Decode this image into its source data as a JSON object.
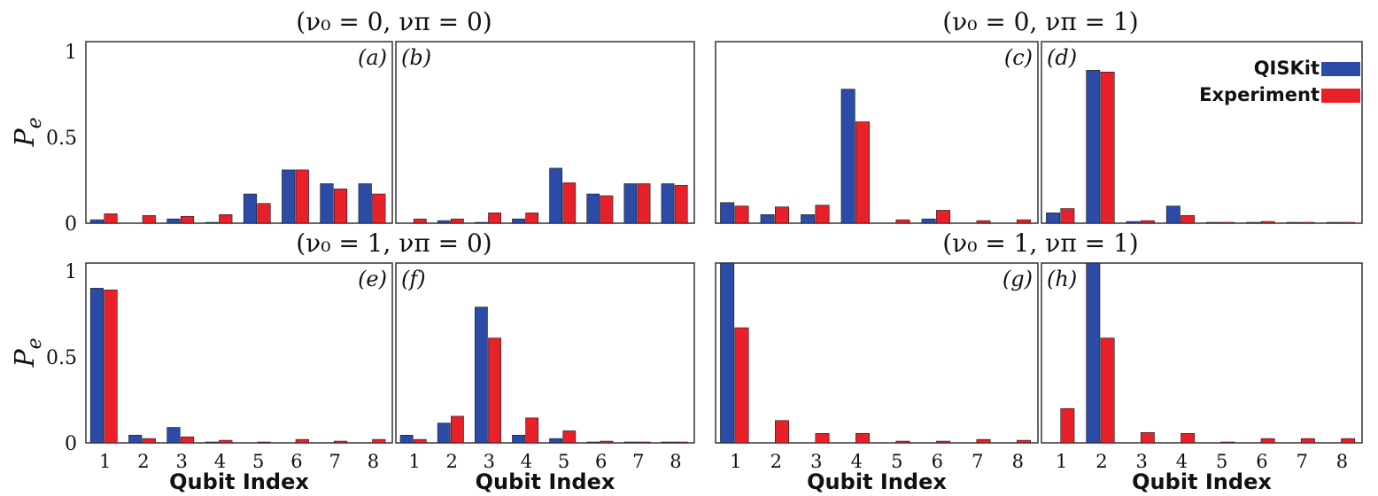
{
  "colors": {
    "qiskit": "#2b4ba6",
    "experiment": "#e8202a",
    "axis": "#333333"
  },
  "group_titles": [
    "(ν₀ = 0,   νπ = 0)",
    "(ν₀ = 0,   νπ = 1)",
    "(ν₀ = 1,   νπ = 0)",
    "(ν₀ = 1,   νπ = 1)"
  ],
  "legend": [
    {
      "label": "QISKit",
      "series": "qiskit"
    },
    {
      "label": "Experiment",
      "series": "experiment"
    }
  ],
  "ylabel": "Pe",
  "xlabel": "Qubit Index",
  "ytick_labels": [
    "0",
    "0.5",
    "1"
  ],
  "xtick_labels": [
    "1",
    "2",
    "3",
    "4",
    "5",
    "6",
    "7",
    "8"
  ],
  "chart_data": [
    {
      "panel": "(a)",
      "type": "bar",
      "categories": [
        "1",
        "2",
        "3",
        "4",
        "5",
        "6",
        "7",
        "8"
      ],
      "ylim": [
        0,
        1
      ],
      "series": [
        {
          "name": "QISKit",
          "values": [
            0.02,
            0.0,
            0.025,
            0.005,
            0.17,
            0.31,
            0.23,
            0.23
          ]
        },
        {
          "name": "Experiment",
          "values": [
            0.055,
            0.045,
            0.04,
            0.05,
            0.115,
            0.31,
            0.2,
            0.17
          ]
        }
      ]
    },
    {
      "panel": "(b)",
      "type": "bar",
      "categories": [
        "1",
        "2",
        "3",
        "4",
        "5",
        "6",
        "7",
        "8"
      ],
      "ylim": [
        0,
        1
      ],
      "series": [
        {
          "name": "QISKit",
          "values": [
            0.0,
            0.015,
            0.005,
            0.025,
            0.32,
            0.17,
            0.23,
            0.23
          ]
        },
        {
          "name": "Experiment",
          "values": [
            0.025,
            0.025,
            0.06,
            0.06,
            0.235,
            0.16,
            0.23,
            0.22
          ]
        }
      ]
    },
    {
      "panel": "(c)",
      "type": "bar",
      "categories": [
        "1",
        "2",
        "3",
        "4",
        "5",
        "6",
        "7",
        "8"
      ],
      "ylim": [
        0,
        1
      ],
      "series": [
        {
          "name": "QISKit",
          "values": [
            0.12,
            0.05,
            0.05,
            0.78,
            0.0,
            0.025,
            0.0,
            0.0
          ]
        },
        {
          "name": "Experiment",
          "values": [
            0.1,
            0.095,
            0.105,
            0.59,
            0.02,
            0.075,
            0.015,
            0.02
          ]
        }
      ]
    },
    {
      "panel": "(d)",
      "type": "bar",
      "categories": [
        "1",
        "2",
        "3",
        "4",
        "5",
        "6",
        "7",
        "8"
      ],
      "ylim": [
        0,
        1
      ],
      "series": [
        {
          "name": "QISKit",
          "values": [
            0.06,
            0.89,
            0.01,
            0.1,
            0.005,
            0.005,
            0.005,
            0.005
          ]
        },
        {
          "name": "Experiment",
          "values": [
            0.085,
            0.88,
            0.015,
            0.045,
            0.005,
            0.01,
            0.005,
            0.005
          ]
        }
      ]
    },
    {
      "panel": "(e)",
      "type": "bar",
      "categories": [
        "1",
        "2",
        "3",
        "4",
        "5",
        "6",
        "7",
        "8"
      ],
      "ylim": [
        0,
        1.05
      ],
      "series": [
        {
          "name": "QISKit",
          "values": [
            0.9,
            0.045,
            0.09,
            0.005,
            0.0,
            0.0,
            0.0,
            0.0
          ]
        },
        {
          "name": "Experiment",
          "values": [
            0.89,
            0.025,
            0.035,
            0.015,
            0.005,
            0.02,
            0.01,
            0.02
          ]
        }
      ]
    },
    {
      "panel": "(f)",
      "type": "bar",
      "categories": [
        "1",
        "2",
        "3",
        "4",
        "5",
        "6",
        "7",
        "8"
      ],
      "ylim": [
        0,
        1.05
      ],
      "series": [
        {
          "name": "QISKit",
          "values": [
            0.045,
            0.115,
            0.79,
            0.045,
            0.025,
            0.005,
            0.005,
            0.005
          ]
        },
        {
          "name": "Experiment",
          "values": [
            0.02,
            0.155,
            0.61,
            0.145,
            0.07,
            0.01,
            0.005,
            0.005
          ]
        }
      ]
    },
    {
      "panel": "(g)",
      "type": "bar",
      "categories": [
        "1",
        "2",
        "3",
        "4",
        "5",
        "6",
        "7",
        "8"
      ],
      "ylim": [
        0,
        1.05
      ],
      "series": [
        {
          "name": "QISKit",
          "values": [
            1.05,
            0.0,
            0.0,
            0.0,
            0.0,
            0.0,
            0.0,
            0.0
          ]
        },
        {
          "name": "Experiment",
          "values": [
            0.67,
            0.13,
            0.055,
            0.055,
            0.01,
            0.01,
            0.02,
            0.015
          ]
        }
      ]
    },
    {
      "panel": "(h)",
      "type": "bar",
      "categories": [
        "1",
        "2",
        "3",
        "4",
        "5",
        "6",
        "7",
        "8"
      ],
      "ylim": [
        0,
        1.05
      ],
      "series": [
        {
          "name": "QISKit",
          "values": [
            0.0,
            1.05,
            0.0,
            0.0,
            0.0,
            0.0,
            0.0,
            0.0
          ]
        },
        {
          "name": "Experiment",
          "values": [
            0.2,
            0.61,
            0.06,
            0.055,
            0.005,
            0.025,
            0.025,
            0.025
          ]
        }
      ]
    }
  ]
}
